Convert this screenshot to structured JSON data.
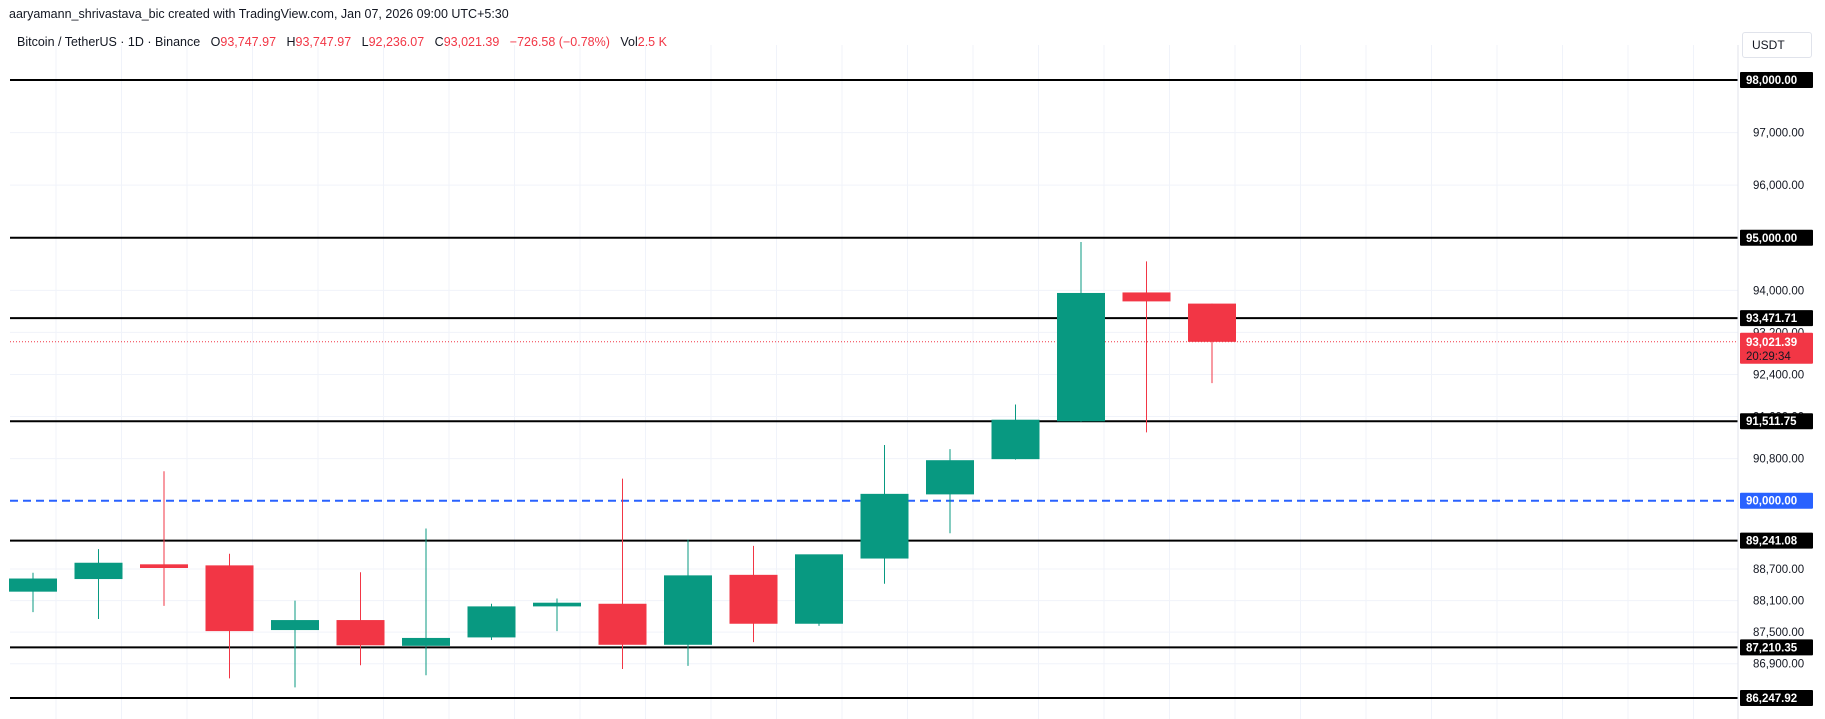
{
  "header": {
    "credit": "aaryamann_shrivastava_bic created with TradingView.com, Jan 07, 2026 09:00 UTC+5:30",
    "symbol": "Bitcoin / TetherUS · 1D · Binance",
    "open_label": "O",
    "open": "93,747.97",
    "high_label": "H",
    "high": "93,747.97",
    "low_label": "L",
    "low": "92,236.07",
    "close_label": "C",
    "close": "93,021.39",
    "change": "−726.58 (−0.78%)",
    "vol_label": "Vol",
    "vol": "2.5 K",
    "currency": "USDT"
  },
  "colors": {
    "up": "#089981",
    "down": "#f23645",
    "level": "#000000",
    "dashed": "#2962ff",
    "price_line": "#f23645"
  },
  "chart_data": {
    "type": "candlestick",
    "ylim": [
      85800,
      99500
    ],
    "y_ticks": [
      {
        "value": 97000,
        "label": "97,000.00"
      },
      {
        "value": 96000,
        "label": "96,000.00"
      },
      {
        "value": 94000,
        "label": "94,000.00"
      },
      {
        "value": 93200,
        "label": "93,200.00"
      },
      {
        "value": 92400,
        "label": "92,400.00"
      },
      {
        "value": 91600,
        "label": "91,600.00"
      },
      {
        "value": 90800,
        "label": "90,800.00"
      },
      {
        "value": 88700,
        "label": "88,700.00"
      },
      {
        "value": 88100,
        "label": "88,100.00"
      },
      {
        "value": 87500,
        "label": "87,500.00"
      },
      {
        "value": 86900,
        "label": "86,900.00"
      }
    ],
    "candles": [
      {
        "o": 88270,
        "h": 88630,
        "l": 87880,
        "c": 88520
      },
      {
        "o": 88510,
        "h": 89080,
        "l": 87750,
        "c": 88820
      },
      {
        "o": 88790,
        "h": 90560,
        "l": 88000,
        "c": 88720
      },
      {
        "o": 88770,
        "h": 88990,
        "l": 86620,
        "c": 87520
      },
      {
        "o": 87540,
        "h": 88100,
        "l": 86450,
        "c": 87730
      },
      {
        "o": 87730,
        "h": 88640,
        "l": 86870,
        "c": 87250
      },
      {
        "o": 87240,
        "h": 89470,
        "l": 86680,
        "c": 87390
      },
      {
        "o": 87400,
        "h": 88040,
        "l": 87350,
        "c": 87990
      },
      {
        "o": 87990,
        "h": 88140,
        "l": 87520,
        "c": 88060
      },
      {
        "o": 88040,
        "h": 90420,
        "l": 86800,
        "c": 87260
      },
      {
        "o": 87260,
        "h": 89260,
        "l": 86860,
        "c": 88580
      },
      {
        "o": 88590,
        "h": 89140,
        "l": 87310,
        "c": 87660
      },
      {
        "o": 87660,
        "h": 88920,
        "l": 87620,
        "c": 88980
      },
      {
        "o": 88900,
        "h": 91060,
        "l": 88420,
        "c": 90130
      },
      {
        "o": 90120,
        "h": 90980,
        "l": 89380,
        "c": 90770
      },
      {
        "o": 90790,
        "h": 91830,
        "l": 90780,
        "c": 91540
      },
      {
        "o": 91510,
        "h": 94920,
        "l": 91500,
        "c": 93950
      },
      {
        "o": 93960,
        "h": 94550,
        "l": 91300,
        "c": 93790
      },
      {
        "o": 93748,
        "h": 93748,
        "l": 92236,
        "c": 93021
      }
    ],
    "levels": [
      {
        "value": 98000,
        "label": "98,000.00",
        "style": "solid"
      },
      {
        "value": 95000,
        "label": "95,000.00",
        "style": "solid"
      },
      {
        "value": 93471.71,
        "label": "93,471.71",
        "style": "solid"
      },
      {
        "value": 91511.75,
        "label": "91,511.75",
        "style": "solid"
      },
      {
        "value": 90000,
        "label": "90,000.00",
        "style": "dashed"
      },
      {
        "value": 89241.08,
        "label": "89,241.08",
        "style": "solid"
      },
      {
        "value": 87210.35,
        "label": "87,210.35",
        "style": "solid"
      },
      {
        "value": 86247.92,
        "label": "86,247.92",
        "style": "solid"
      }
    ],
    "last_price": {
      "value": 93021.39,
      "label": "93,021.39",
      "countdown": "20:29:34"
    }
  }
}
